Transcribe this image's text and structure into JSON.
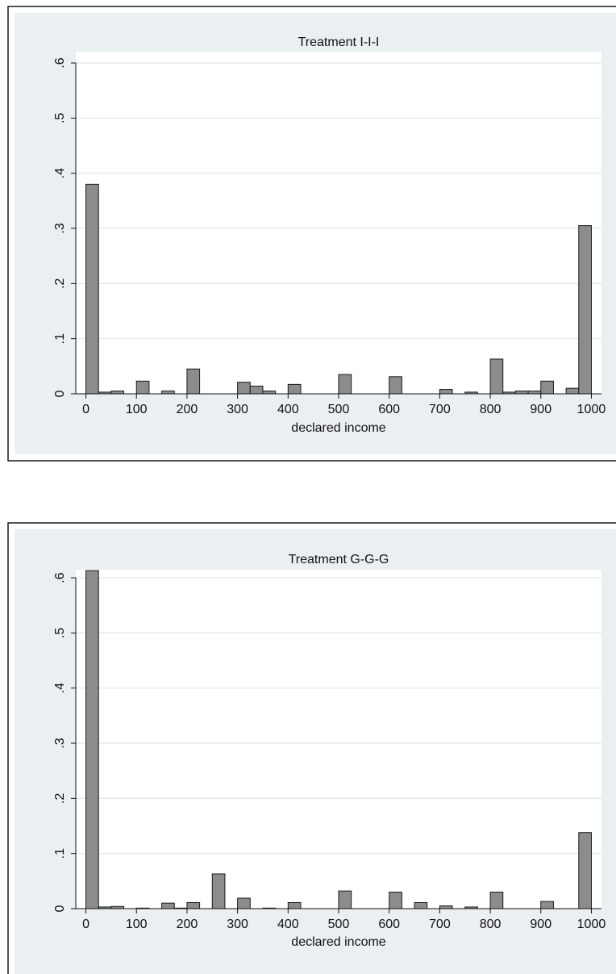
{
  "chart_data": [
    {
      "type": "bar",
      "title": "Treatment I-I-I",
      "xlabel": "declared income",
      "ylabel": "",
      "xlim": [
        -20,
        1020
      ],
      "ylim": [
        0,
        0.6
      ],
      "bin_width": 25,
      "x_ticks": [
        "0",
        "100",
        "200",
        "300",
        "400",
        "500",
        "600",
        "700",
        "800",
        "900",
        "1000"
      ],
      "y_ticks": [
        "0",
        ".1",
        ".2",
        ".3",
        ".4",
        ".5",
        ".6"
      ],
      "grid": true,
      "x": [
        0,
        25,
        50,
        100,
        150,
        200,
        300,
        325,
        350,
        400,
        500,
        600,
        700,
        750,
        800,
        825,
        850,
        875,
        900,
        950,
        975
      ],
      "values": [
        0.38,
        0.003,
        0.005,
        0.023,
        0.005,
        0.045,
        0.021,
        0.014,
        0.005,
        0.017,
        0.035,
        0.031,
        0.008,
        0.003,
        0.063,
        0.003,
        0.005,
        0.005,
        0.023,
        0.01,
        0.305
      ]
    },
    {
      "type": "bar",
      "title": "Treatment G-G-G",
      "xlabel": "declared income",
      "ylabel": "",
      "xlim": [
        -20,
        1020
      ],
      "ylim": [
        0,
        0.6
      ],
      "bin_width": 25,
      "x_ticks": [
        "0",
        "100",
        "200",
        "300",
        "400",
        "500",
        "600",
        "700",
        "800",
        "900",
        "1000"
      ],
      "y_ticks": [
        "0",
        ".1",
        ".2",
        ".3",
        ".4",
        ".5",
        ".6"
      ],
      "grid": true,
      "x": [
        0,
        25,
        50,
        100,
        150,
        175,
        200,
        250,
        300,
        350,
        400,
        500,
        600,
        650,
        700,
        750,
        800,
        900,
        975
      ],
      "values": [
        0.613,
        0.003,
        0.004,
        0.001,
        0.01,
        0.001,
        0.011,
        0.063,
        0.019,
        0.001,
        0.011,
        0.032,
        0.03,
        0.011,
        0.005,
        0.003,
        0.03,
        0.013,
        0.138
      ]
    }
  ]
}
